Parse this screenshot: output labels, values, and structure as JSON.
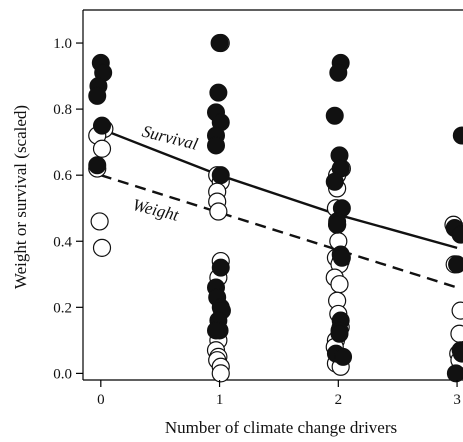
{
  "chart_data": {
    "type": "scatter",
    "xlabel": "Number of climate change drivers",
    "ylabel": "Weight or survival (scaled)",
    "xlim": [
      -0.15,
      3.05
    ],
    "ylim": [
      -0.02,
      1.1
    ],
    "xticks": [
      "0",
      "1",
      "2",
      "3"
    ],
    "yticks": [
      "0.0",
      "0.2",
      "0.4",
      "0.6",
      "0.8",
      "1.0"
    ],
    "grid": false,
    "series": [
      {
        "name": "Survival",
        "marker": "filled-circle",
        "points": [
          [
            0,
            0.94
          ],
          [
            0.02,
            0.91
          ],
          [
            -0.02,
            0.87
          ],
          [
            -0.03,
            0.84
          ],
          [
            0.01,
            0.75
          ],
          [
            -0.03,
            0.63
          ],
          [
            1,
            1.0
          ],
          [
            0.99,
            0.85
          ],
          [
            0.97,
            0.79
          ],
          [
            1.01,
            0.76
          ],
          [
            0.97,
            0.72
          ],
          [
            0.97,
            0.69
          ],
          [
            1.01,
            0.6
          ],
          [
            1.01,
            0.32
          ],
          [
            0.97,
            0.26
          ],
          [
            0.98,
            0.23
          ],
          [
            1.01,
            0.2
          ],
          [
            1.02,
            0.19
          ],
          [
            0.99,
            0.16
          ],
          [
            1.0,
            0.13
          ],
          [
            0.97,
            0.13
          ],
          [
            2.02,
            0.94
          ],
          [
            2.0,
            0.91
          ],
          [
            1.97,
            0.78
          ],
          [
            2.01,
            0.66
          ],
          [
            2.02,
            0.62
          ],
          [
            1.97,
            0.58
          ],
          [
            2.03,
            0.5
          ],
          [
            1.99,
            0.46
          ],
          [
            1.99,
            0.45
          ],
          [
            2.02,
            0.36
          ],
          [
            2.03,
            0.35
          ],
          [
            2.02,
            0.16
          ],
          [
            2.01,
            0.13
          ],
          [
            2.01,
            0.12
          ],
          [
            1.98,
            0.06
          ],
          [
            2.04,
            0.05
          ],
          [
            3.04,
            0.72
          ],
          [
            2.98,
            0.44
          ],
          [
            3.03,
            0.42
          ],
          [
            3.0,
            0.33
          ],
          [
            3.03,
            0.07
          ],
          [
            3.04,
            0.06
          ],
          [
            2.99,
            0.0
          ]
        ],
        "fit": [
          [
            0,
            0.74
          ],
          [
            0.5,
            0.67
          ],
          [
            1,
            0.6
          ],
          [
            1.5,
            0.54
          ],
          [
            2,
            0.48
          ],
          [
            2.5,
            0.43
          ],
          [
            3,
            0.38
          ]
        ]
      },
      {
        "name": "Weight",
        "marker": "open-circle",
        "points": [
          [
            0.03,
            0.74
          ],
          [
            -0.03,
            0.72
          ],
          [
            0.01,
            0.68
          ],
          [
            -0.03,
            0.62
          ],
          [
            -0.01,
            0.46
          ],
          [
            0.01,
            0.38
          ],
          [
            1.01,
            1.0
          ],
          [
            0.98,
            0.6
          ],
          [
            1.01,
            0.58
          ],
          [
            0.98,
            0.55
          ],
          [
            0.98,
            0.52
          ],
          [
            0.99,
            0.49
          ],
          [
            1.01,
            0.34
          ],
          [
            0.99,
            0.29
          ],
          [
            0.99,
            0.1
          ],
          [
            0.97,
            0.07
          ],
          [
            0.99,
            0.05
          ],
          [
            0.98,
            0.04
          ],
          [
            1.01,
            0.02
          ],
          [
            1.01,
            0.0
          ],
          [
            2.03,
            0.62
          ],
          [
            1.99,
            0.6
          ],
          [
            1.99,
            0.56
          ],
          [
            1.98,
            0.5
          ],
          [
            1.99,
            0.45
          ],
          [
            2.0,
            0.4
          ],
          [
            1.98,
            0.35
          ],
          [
            2.02,
            0.34
          ],
          [
            2.01,
            0.33
          ],
          [
            1.97,
            0.29
          ],
          [
            2.01,
            0.27
          ],
          [
            1.99,
            0.22
          ],
          [
            2.0,
            0.18
          ],
          [
            2.02,
            0.14
          ],
          [
            1.98,
            0.1
          ],
          [
            1.97,
            0.08
          ],
          [
            2.01,
            0.05
          ],
          [
            1.98,
            0.03
          ],
          [
            2.02,
            0.02
          ],
          [
            2.97,
            0.45
          ],
          [
            3.03,
            0.43
          ],
          [
            2.98,
            0.33
          ],
          [
            3.03,
            0.19
          ],
          [
            3.02,
            0.12
          ],
          [
            3.01,
            0.06
          ],
          [
            3.02,
            0.04
          ]
        ],
        "fit": [
          [
            0,
            0.6
          ],
          [
            3,
            0.26
          ]
        ]
      }
    ],
    "annotations": [
      {
        "text": "Survival",
        "series": "Survival"
      },
      {
        "text": "Weight",
        "series": "Weight"
      }
    ]
  }
}
